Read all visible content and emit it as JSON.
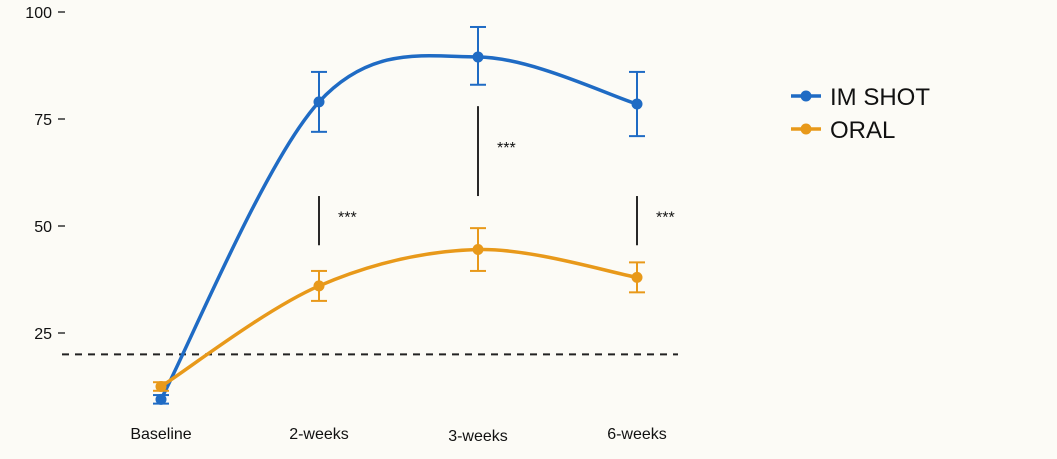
{
  "chart_data": {
    "type": "line",
    "categories": [
      "Baseline",
      "2-weeks",
      "3-weeks",
      "6-weeks"
    ],
    "ylim": [
      8,
      100
    ],
    "yticks": [
      25,
      50,
      75,
      100
    ],
    "reference_line": 20,
    "series": [
      {
        "name": "IM SHOT",
        "color": "#1f6bc4",
        "values": [
          9.5,
          79,
          89.5,
          78.5
        ],
        "err_low": [
          8.5,
          72,
          83,
          71
        ],
        "err_high": [
          10.5,
          86,
          96.5,
          86
        ]
      },
      {
        "name": "ORAL",
        "color": "#e8991a",
        "values": [
          12.5,
          36,
          44.5,
          38
        ],
        "err_low": [
          11.5,
          32.5,
          39.5,
          34.5
        ],
        "err_high": [
          13.5,
          39.5,
          49.5,
          41.5
        ]
      }
    ],
    "significance": [
      {
        "category": "2-weeks",
        "label": "***",
        "from": 45.5,
        "to": 57
      },
      {
        "category": "3-weeks",
        "label": "***",
        "from": 57,
        "to": 78
      },
      {
        "category": "6-weeks",
        "label": "***",
        "from": 45.5,
        "to": 57
      }
    ]
  }
}
